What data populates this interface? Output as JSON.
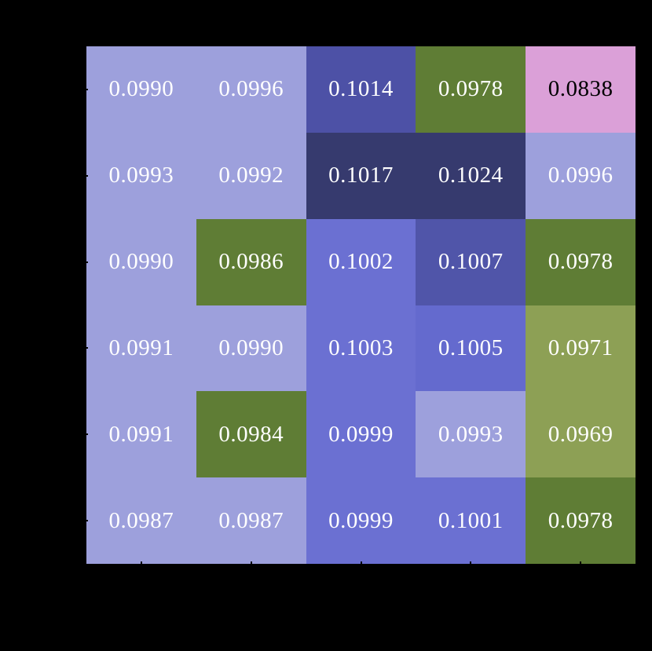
{
  "page": {
    "background_color": "#000000"
  },
  "chart_data": {
    "type": "heatmap",
    "rows": 6,
    "cols": 5,
    "values": [
      [
        0.099,
        0.0996,
        0.1014,
        0.0978,
        0.0838
      ],
      [
        0.0993,
        0.0992,
        0.1017,
        0.1024,
        0.0996
      ],
      [
        0.099,
        0.0986,
        0.1002,
        0.1007,
        0.0978
      ],
      [
        0.0991,
        0.099,
        0.1003,
        0.1005,
        0.0971
      ],
      [
        0.0991,
        0.0984,
        0.0999,
        0.0993,
        0.0969
      ],
      [
        0.0987,
        0.0987,
        0.0999,
        0.1001,
        0.0978
      ]
    ],
    "cell_labels": [
      [
        "0.0990",
        "0.0996",
        "0.1014",
        "0.0978",
        "0.0838"
      ],
      [
        "0.0993",
        "0.0992",
        "0.1017",
        "0.1024",
        "0.0996"
      ],
      [
        "0.0990",
        "0.0986",
        "0.1002",
        "0.1007",
        "0.0978"
      ],
      [
        "0.0991",
        "0.0990",
        "0.1003",
        "0.1005",
        "0.0971"
      ],
      [
        "0.0991",
        "0.0984",
        "0.0999",
        "0.0993",
        "0.0969"
      ],
      [
        "0.0987",
        "0.0987",
        "0.0999",
        "0.1001",
        "0.0978"
      ]
    ],
    "cell_colors": [
      [
        "#9da0dc",
        "#9da0dc",
        "#4d51a6",
        "#5f7d35",
        "#dba0d8"
      ],
      [
        "#9da0dc",
        "#9da0dc",
        "#363a6e",
        "#363a6e",
        "#9da0dc"
      ],
      [
        "#9da0dc",
        "#5f7d35",
        "#6b70d2",
        "#5055a9",
        "#5f7d35"
      ],
      [
        "#9da0dc",
        "#9da0dc",
        "#6b70d2",
        "#646ace",
        "#8da055"
      ],
      [
        "#9da0dc",
        "#5f7d35",
        "#6b70d2",
        "#9da0dc",
        "#8da055"
      ],
      [
        "#9da0dc",
        "#9da0dc",
        "#6b70d2",
        "#6b70d2",
        "#5f7d35"
      ]
    ],
    "text_colors": [
      [
        "#ffffff",
        "#ffffff",
        "#ffffff",
        "#ffffff",
        "#000000"
      ],
      [
        "#ffffff",
        "#ffffff",
        "#ffffff",
        "#ffffff",
        "#ffffff"
      ],
      [
        "#ffffff",
        "#ffffff",
        "#ffffff",
        "#ffffff",
        "#ffffff"
      ],
      [
        "#ffffff",
        "#ffffff",
        "#ffffff",
        "#ffffff",
        "#ffffff"
      ],
      [
        "#ffffff",
        "#ffffff",
        "#ffffff",
        "#ffffff",
        "#ffffff"
      ],
      [
        "#ffffff",
        "#ffffff",
        "#ffffff",
        "#ffffff",
        "#ffffff"
      ]
    ],
    "tick_color": "#000000",
    "x_tick_count": 5,
    "y_tick_count": 6
  }
}
